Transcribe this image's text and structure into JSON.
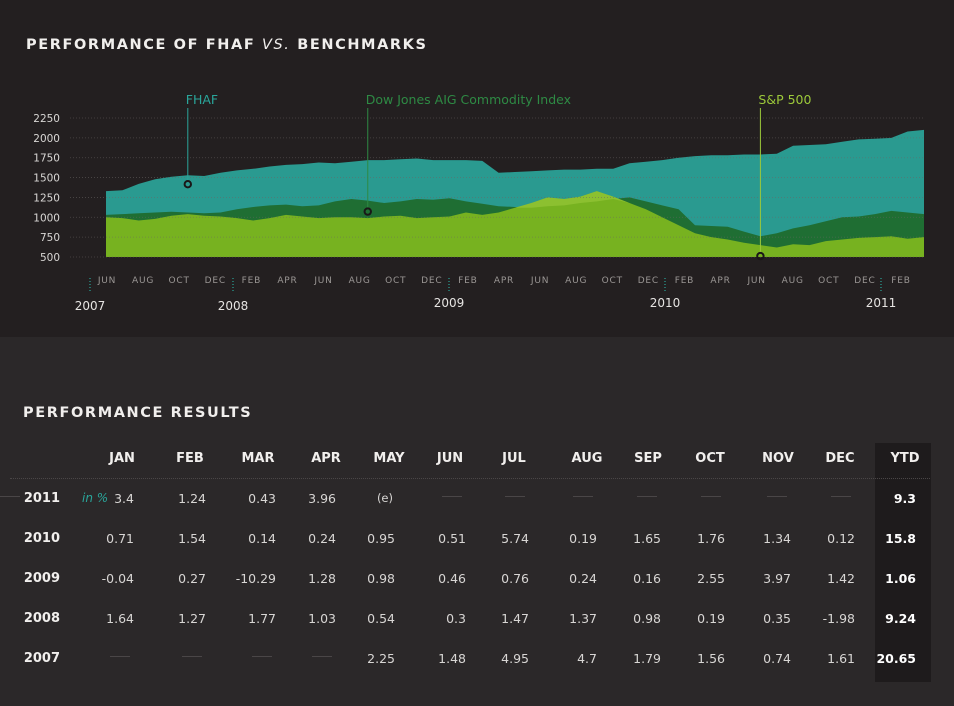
{
  "chart_title": {
    "part1": "PERFORMANCE OF FHAF",
    "vs": "VS.",
    "part2": "BENCHMARKS"
  },
  "results_title": "PERFORMANCE RESULTS",
  "colors": {
    "fhaf": "#2a9a90",
    "djaig": "#1f6e33",
    "sp500": "#7cb520",
    "sp500_light": "#9ccb3a",
    "fhaf_label": "#2aa59a",
    "djaig_label": "#2e8a44",
    "sp500_label": "#9cc93a"
  },
  "chart_data": {
    "type": "area",
    "title": "PERFORMANCE OF FHAF VS. BENCHMARKS",
    "ylim": [
      500,
      2250
    ],
    "yticks": [
      500,
      750,
      1000,
      1250,
      1500,
      1750,
      2000,
      2250
    ],
    "grid": true,
    "month_labels": [
      "JUN",
      "AUG",
      "OCT",
      "DEC",
      "FEB",
      "APR",
      "JUN",
      "AUG",
      "OCT",
      "DEC",
      "FEB",
      "APR",
      "JUN",
      "AUG",
      "OCT",
      "DEC",
      "FEB",
      "APR",
      "JUN",
      "AUG",
      "OCT",
      "DEC",
      "FEB"
    ],
    "year_labels": [
      "2007",
      "2008",
      "2009",
      "2010",
      "2011"
    ],
    "series": [
      {
        "name": "FHAF",
        "values": [
          1330,
          1340,
          1420,
          1480,
          1510,
          1530,
          1520,
          1560,
          1590,
          1610,
          1640,
          1660,
          1670,
          1690,
          1680,
          1700,
          1720,
          1720,
          1730,
          1740,
          1720,
          1720,
          1720,
          1710,
          1560,
          1570,
          1580,
          1590,
          1600,
          1600,
          1610,
          1610,
          1680,
          1700,
          1720,
          1750,
          1770,
          1780,
          1780,
          1790,
          1790,
          1800,
          1900,
          1910,
          1920,
          1950,
          1980,
          1990,
          2000,
          2080,
          2100
        ]
      },
      {
        "name": "Dow Jones AIG Commodity Index",
        "values": [
          1030,
          1040,
          1050,
          1060,
          1070,
          1060,
          1050,
          1060,
          1100,
          1130,
          1150,
          1160,
          1140,
          1150,
          1200,
          1230,
          1210,
          1180,
          1200,
          1230,
          1220,
          1240,
          1200,
          1170,
          1140,
          1130,
          1120,
          1140,
          1150,
          1180,
          1200,
          1230,
          1250,
          1200,
          1150,
          1100,
          900,
          890,
          880,
          820,
          760,
          800,
          860,
          900,
          950,
          1000,
          1010,
          1040,
          1080,
          1060,
          1040
        ]
      },
      {
        "name": "S&P 500",
        "values": [
          1000,
          990,
          960,
          980,
          1020,
          1040,
          1020,
          1010,
          990,
          960,
          990,
          1030,
          1010,
          990,
          1000,
          1000,
          990,
          1010,
          1020,
          990,
          1000,
          1010,
          1060,
          1030,
          1060,
          1120,
          1180,
          1250,
          1230,
          1260,
          1330,
          1260,
          1180,
          1100,
          1000,
          900,
          800,
          750,
          720,
          680,
          650,
          620,
          660,
          650,
          700,
          720,
          740,
          750,
          760,
          730,
          750
        ]
      }
    ],
    "annotations": [
      {
        "label": "FHAF",
        "series": "FHAF",
        "at_index": 5
      },
      {
        "label": "Dow Jones AIG Commodity Index",
        "series": "Dow Jones AIG Commodity Index",
        "at_index": 16
      },
      {
        "label": "S&P 500",
        "series": "S&P 500",
        "at_index": 40
      }
    ]
  },
  "table": {
    "columns": [
      "JAN",
      "FEB",
      "MAR",
      "APR",
      "MAY",
      "JUN",
      "JUL",
      "AUG",
      "SEP",
      "OCT",
      "NOV",
      "DEC",
      "YTD"
    ],
    "unit_label": "in %",
    "rows": [
      {
        "year": "2011",
        "values": [
          "3.4",
          "1.24",
          "0.43",
          "3.96",
          "(e)",
          "",
          "",
          "",
          "",
          "",
          "",
          "",
          ""
        ],
        "ytd": "9.3"
      },
      {
        "year": "2010",
        "values": [
          "0.71",
          "1.54",
          "0.14",
          "0.24",
          "0.95",
          "0.51",
          "5.74",
          "0.19",
          "1.65",
          "1.76",
          "1.34",
          "0.12"
        ],
        "ytd": "15.8"
      },
      {
        "year": "2009",
        "values": [
          "-0.04",
          "0.27",
          "-10.29",
          "1.28",
          "0.98",
          "0.46",
          "0.76",
          "0.24",
          "0.16",
          "2.55",
          "3.97",
          "1.42"
        ],
        "ytd": "1.06"
      },
      {
        "year": "2008",
        "values": [
          "1.64",
          "1.27",
          "1.77",
          "1.03",
          "0.54",
          "0.3",
          "1.47",
          "1.37",
          "0.98",
          "0.19",
          "0.35",
          "-1.98"
        ],
        "ytd": "9.24"
      },
      {
        "year": "2007",
        "values": [
          "",
          "",
          "",
          "",
          "2.25",
          "1.48",
          "4.95",
          "4.7",
          "1.79",
          "1.56",
          "0.74",
          "1.61"
        ],
        "ytd": "20.65"
      }
    ]
  }
}
